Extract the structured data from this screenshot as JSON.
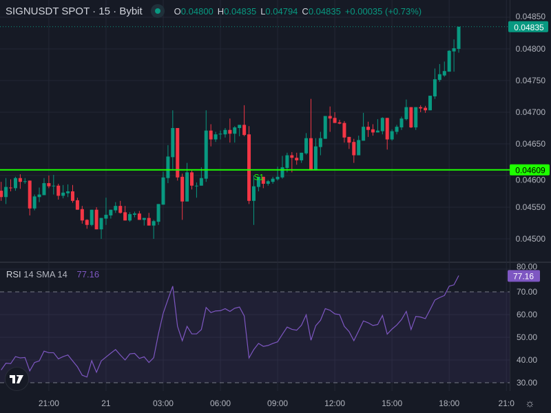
{
  "header": {
    "symbol": "SIGNUSDT SPOT · 15 · Bybit",
    "o_label": "O",
    "o_value": "0.04800",
    "h_label": "H",
    "h_value": "0.04835",
    "l_label": "L",
    "l_value": "0.04794",
    "c_label": "C",
    "c_value": "0.04835",
    "change": "+0.00035 (+0.73%)",
    "status_icon": "market-open-dot-icon"
  },
  "rsi_legend": {
    "name": "RSI",
    "params": "14 SMA 14",
    "value": "77.16"
  },
  "logo": "TV",
  "settings_icon": "gear-icon",
  "colors": {
    "background": "#161a25",
    "up": "#089981",
    "down": "#f23645",
    "rsi": "#7e57c2",
    "level_line": "#1eff00",
    "grid": "#232735"
  },
  "chart_data": [
    {
      "type": "candlestick",
      "ylim": [
        0.04464,
        0.04877
      ],
      "grid": true,
      "price_ticks": [
        "0.04850",
        "0.04800",
        "0.04750",
        "0.04700",
        "0.04650",
        "0.04600",
        "0.04550",
        "0.04500"
      ],
      "last_price_label": "0.04835",
      "last_price": 0.04835,
      "level_line": {
        "price": 0.04609,
        "label": "0.04609"
      },
      "annotation": {
        "text": "S1",
        "bar": 53
      },
      "x_ticks": [
        {
          "label": "21:00",
          "bar": 10
        },
        {
          "label": "21",
          "bar": 22
        },
        {
          "label": "03:00",
          "bar": 34
        },
        {
          "label": "06:00",
          "bar": 46
        },
        {
          "label": "09:00",
          "bar": 58
        },
        {
          "label": "12:00",
          "bar": 70
        },
        {
          "label": "15:00",
          "bar": 82
        },
        {
          "label": "18:00",
          "bar": 94
        },
        {
          "label": "21:0",
          "bar": 106
        }
      ],
      "ohlc": [
        [
          0.04576,
          0.0459,
          0.0456,
          0.04566
        ],
        [
          0.04566,
          0.04596,
          0.04555,
          0.04582
        ],
        [
          0.04581,
          0.04594,
          0.04575,
          0.0458
        ],
        [
          0.0458,
          0.04598,
          0.04576,
          0.04596
        ],
        [
          0.04596,
          0.04602,
          0.04579,
          0.0459
        ],
        [
          0.0459,
          0.04596,
          0.04587,
          0.04591
        ],
        [
          0.04592,
          0.04592,
          0.04537,
          0.04548
        ],
        [
          0.04548,
          0.0457,
          0.04545,
          0.04567
        ],
        [
          0.04566,
          0.04581,
          0.04558,
          0.0457
        ],
        [
          0.04569,
          0.04596,
          0.04569,
          0.04588
        ],
        [
          0.04588,
          0.046,
          0.0458,
          0.04583
        ],
        [
          0.04584,
          0.04601,
          0.0457,
          0.04584
        ],
        [
          0.04584,
          0.04587,
          0.04562,
          0.04568
        ],
        [
          0.04568,
          0.04585,
          0.04564,
          0.04573
        ],
        [
          0.04572,
          0.04586,
          0.04566,
          0.04575
        ],
        [
          0.04575,
          0.04585,
          0.04557,
          0.0456
        ],
        [
          0.04561,
          0.04565,
          0.04546,
          0.04546
        ],
        [
          0.04547,
          0.04552,
          0.04524,
          0.04529
        ],
        [
          0.0453,
          0.04531,
          0.04516,
          0.04522
        ],
        [
          0.04522,
          0.04546,
          0.0452,
          0.04546
        ],
        [
          0.04546,
          0.0455,
          0.04515,
          0.04515
        ],
        [
          0.04515,
          0.04533,
          0.045,
          0.04533
        ],
        [
          0.04532,
          0.04565,
          0.04522,
          0.04538
        ],
        [
          0.04537,
          0.04546,
          0.04532,
          0.04546
        ],
        [
          0.04545,
          0.04558,
          0.04541,
          0.04552
        ],
        [
          0.04552,
          0.0456,
          0.0454,
          0.04541
        ],
        [
          0.04542,
          0.04552,
          0.04529,
          0.04529
        ],
        [
          0.04529,
          0.04542,
          0.04527,
          0.04539
        ],
        [
          0.04538,
          0.04543,
          0.04534,
          0.0454
        ],
        [
          0.0454,
          0.04544,
          0.0453,
          0.0453
        ],
        [
          0.0453,
          0.04533,
          0.04521,
          0.04533
        ],
        [
          0.04533,
          0.04541,
          0.04521,
          0.04521
        ],
        [
          0.04521,
          0.0453,
          0.045,
          0.04528
        ],
        [
          0.04527,
          0.04555,
          0.04522,
          0.04555
        ],
        [
          0.04554,
          0.04606,
          0.04554,
          0.04597
        ],
        [
          0.04596,
          0.04648,
          0.04588,
          0.0463
        ],
        [
          0.04629,
          0.04703,
          0.0461,
          0.04675
        ],
        [
          0.04675,
          0.04675,
          0.04592,
          0.04597
        ],
        [
          0.04598,
          0.04603,
          0.0453,
          0.04559
        ],
        [
          0.04559,
          0.0462,
          0.04559,
          0.04605
        ],
        [
          0.04605,
          0.04608,
          0.04578,
          0.04584
        ],
        [
          0.04584,
          0.04589,
          0.04565,
          0.04584
        ],
        [
          0.04584,
          0.04613,
          0.04584,
          0.04596
        ],
        [
          0.04595,
          0.04703,
          0.0459,
          0.04671
        ],
        [
          0.04671,
          0.04681,
          0.04646,
          0.04657
        ],
        [
          0.04657,
          0.04669,
          0.04653,
          0.04665
        ],
        [
          0.04665,
          0.04671,
          0.04657,
          0.04666
        ],
        [
          0.04665,
          0.04675,
          0.0466,
          0.04672
        ],
        [
          0.04672,
          0.0469,
          0.04652,
          0.04666
        ],
        [
          0.04666,
          0.04678,
          0.04652,
          0.04676
        ],
        [
          0.04675,
          0.0468,
          0.04662,
          0.0468
        ],
        [
          0.0468,
          0.04711,
          0.04662,
          0.04664
        ],
        [
          0.04665,
          0.04678,
          0.04555,
          0.0456
        ],
        [
          0.0456,
          0.046,
          0.04522,
          0.04583
        ],
        [
          0.04582,
          0.04598,
          0.04575,
          0.04598
        ],
        [
          0.04598,
          0.04598,
          0.0458,
          0.04587
        ],
        [
          0.04587,
          0.04593,
          0.04584,
          0.04591
        ],
        [
          0.0459,
          0.04598,
          0.04587,
          0.04595
        ],
        [
          0.04594,
          0.04614,
          0.04592,
          0.04598
        ],
        [
          0.04597,
          0.04631,
          0.04595,
          0.04613
        ],
        [
          0.04612,
          0.04636,
          0.04605,
          0.04632
        ],
        [
          0.04632,
          0.04637,
          0.04605,
          0.04628
        ],
        [
          0.04628,
          0.04636,
          0.04617,
          0.04624
        ],
        [
          0.04624,
          0.04636,
          0.0462,
          0.04636
        ],
        [
          0.04635,
          0.04667,
          0.04633,
          0.04659
        ],
        [
          0.04659,
          0.04721,
          0.04608,
          0.04608
        ],
        [
          0.04608,
          0.04659,
          0.04608,
          0.04646
        ],
        [
          0.04645,
          0.04669,
          0.04632,
          0.04659
        ],
        [
          0.04658,
          0.04694,
          0.04658,
          0.04694
        ],
        [
          0.04694,
          0.04709,
          0.04669,
          0.0469
        ],
        [
          0.04691,
          0.047,
          0.04683,
          0.04683
        ],
        [
          0.04684,
          0.04688,
          0.04681,
          0.04682
        ],
        [
          0.04683,
          0.04686,
          0.04652,
          0.0466
        ],
        [
          0.04661,
          0.04661,
          0.04642,
          0.04652
        ],
        [
          0.04653,
          0.04658,
          0.0462,
          0.04632
        ],
        [
          0.04632,
          0.04663,
          0.04632,
          0.04656
        ],
        [
          0.04655,
          0.04699,
          0.04655,
          0.04677
        ],
        [
          0.04677,
          0.04685,
          0.04661,
          0.04672
        ],
        [
          0.04673,
          0.04681,
          0.04663,
          0.04668
        ],
        [
          0.04668,
          0.04689,
          0.04668,
          0.04671
        ],
        [
          0.0467,
          0.04692,
          0.04665,
          0.04691
        ],
        [
          0.04691,
          0.04691,
          0.04641,
          0.04657
        ],
        [
          0.04657,
          0.04673,
          0.04655,
          0.0467
        ],
        [
          0.04669,
          0.0468,
          0.04665,
          0.04677
        ],
        [
          0.04676,
          0.04693,
          0.04672,
          0.0469
        ],
        [
          0.04689,
          0.0472,
          0.04687,
          0.04708
        ],
        [
          0.04708,
          0.04708,
          0.04675,
          0.04676
        ],
        [
          0.04676,
          0.04708,
          0.04672,
          0.04708
        ],
        [
          0.04708,
          0.04711,
          0.047,
          0.04706
        ],
        [
          0.04707,
          0.0471,
          0.04699,
          0.04703
        ],
        [
          0.04703,
          0.04726,
          0.04703,
          0.04726
        ],
        [
          0.04725,
          0.04769,
          0.04721,
          0.04752
        ],
        [
          0.04751,
          0.04776,
          0.04748,
          0.0476
        ],
        [
          0.04758,
          0.0478,
          0.04756,
          0.04765
        ],
        [
          0.04764,
          0.04798,
          0.04764,
          0.04797
        ],
        [
          0.04796,
          0.04815,
          0.04764,
          0.04801
        ],
        [
          0.048,
          0.04835,
          0.04794,
          0.04835
        ]
      ]
    },
    {
      "type": "line",
      "name": "RSI 14 SMA 14",
      "ylim": [
        26.4,
        82.7
      ],
      "ticks": [
        "80.00",
        "70.00",
        "60.00",
        "50.00",
        "40.00",
        "30.00"
      ],
      "band": [
        30,
        70
      ],
      "last_value_label": "77.16",
      "values": [
        35.6,
        38.6,
        38.4,
        41.5,
        40.9,
        41.1,
        35.2,
        38.9,
        39.6,
        43.9,
        43.2,
        43.2,
        40.5,
        41.5,
        42.2,
        39.6,
        37.0,
        33.3,
        32.5,
        39.7,
        34.6,
        39.6,
        41.3,
        43.0,
        44.6,
        42.2,
        40.0,
        42.7,
        42.9,
        40.7,
        41.4,
        38.9,
        41.0,
        51.5,
        60.6,
        66.7,
        72.5,
        54.8,
        48.5,
        54.8,
        51.5,
        51.5,
        53.4,
        63.1,
        60.9,
        61.6,
        61.7,
        62.6,
        61.4,
        62.8,
        63.3,
        59.4,
        40.9,
        44.6,
        47.3,
        46.0,
        46.4,
        47.3,
        48.0,
        51.3,
        54.5,
        53.5,
        53.1,
        55.3,
        59.9,
        48.7,
        55.1,
        57.5,
        62.6,
        61.9,
        60.3,
        60.0,
        54.8,
        52.5,
        48.5,
        52.8,
        57.2,
        56.4,
        55.2,
        55.6,
        59.6,
        51.4,
        53.6,
        55.4,
        57.8,
        61.4,
        53.4,
        59.2,
        58.9,
        58.2,
        62.2,
        66.4,
        67.5,
        68.4,
        72.5,
        73.1,
        77.16
      ]
    }
  ]
}
